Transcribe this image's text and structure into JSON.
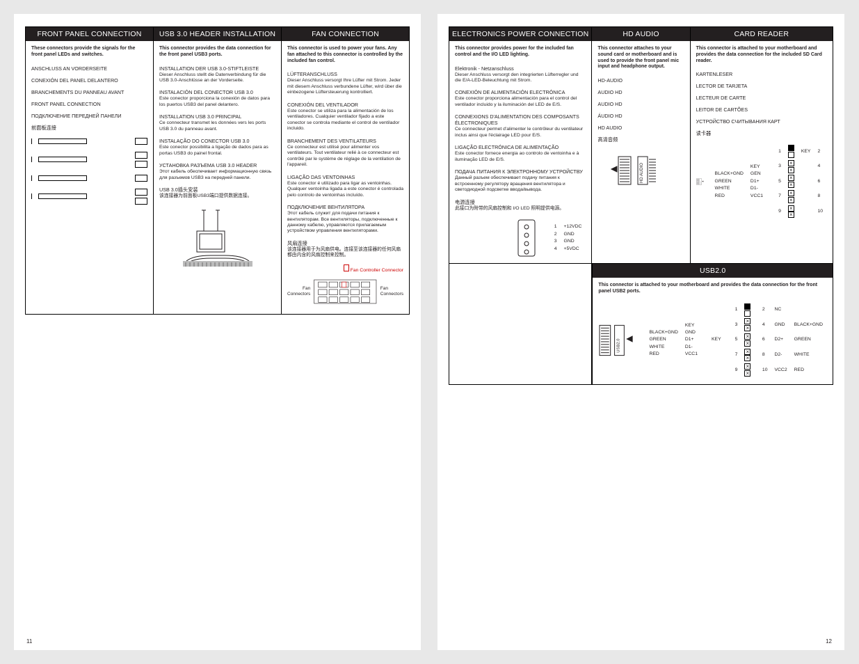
{
  "page_left_no": "11",
  "page_right_no": "12",
  "colors": {
    "ink": "#231f20",
    "bg": "#ffffff",
    "accent_red": "#cc0000"
  },
  "left": {
    "front_panel": {
      "title": "FRONT PANEL CONNECTION",
      "lead": "These connectors provide the signals for the front panel LEDs and switches.",
      "items": [
        {
          "h": "ANSCHLUSS AN VORDERSEITE"
        },
        {
          "h": "CONEXIÓN DEL PANEL DELANTERO"
        },
        {
          "h": "BRANCHEMENTS DU PANNEAU AVANT"
        },
        {
          "h": "FRONT PANEL CONNECTION"
        },
        {
          "h": "ПОДКЛЮЧЕНИЕ ПЕРЕДНЕЙ ПАНЕЛИ"
        },
        {
          "h": "前面板连接"
        }
      ]
    },
    "usb3": {
      "title": "USB 3.0 HEADER INSTALLATION",
      "lead": "This connector provides the data connection for the front panel USB3 ports.",
      "items": [
        {
          "h": "INSTALLATION DER USB 3.0-STIFTLEISTE",
          "p": "Dieser Anschluss stellt die Datenverbindung für die USB 3.0-Anschlüsse an der Vorderseite."
        },
        {
          "h": "INSTALACIÓN DEL CONECTOR USB 3.0",
          "p": "Este conector proporciona la conexión de datos para los puertos USB3 del panel delantero."
        },
        {
          "h": "INSTALLATION USB 3.0 PRINCIPAL",
          "p": "Ce connecteur transmet les données vers les ports USB 3.0 du panneau avant."
        },
        {
          "h": "INSTALAÇÃO DO CONECTOR USB 3.0",
          "p": "Este conector possibilita a ligação de dados para as portas USB3 do painel frontal."
        },
        {
          "h": "УСТАНОВКА РАЗЪЕМА USB 3.0 HEADER",
          "p": "Этот кабель обеспечивает информационную связь для разъемов USB3 на передней панели."
        },
        {
          "h": "USB 3.0插头安装",
          "p": "该连接器为前面板USB3端口提供数据连接。"
        }
      ]
    },
    "fan": {
      "title": "FAN CONNECTION",
      "lead": "This connector is used to power your fans. Any fan attached to this connector is controlled by the included fan control.",
      "items": [
        {
          "h": "LÜFTERANSCHLUSS",
          "p": "Dieser Anschluss versorgt Ihre Lüfter mit Strom. Jeder mit diesem Anschluss verbundene Lüfter, wird über die einbezogene Lüftersteuerung kontrolliert."
        },
        {
          "h": "CONEXIÓN DEL VENTILADOR",
          "p": "Este conector se utiliza para la alimentación de los ventiladores. Cualquier ventilador fijado a este conector se controla mediante el control de ventilador incluido."
        },
        {
          "h": "BRANCHEMENT DES VENTILATEURS",
          "p": "Ce connecteur est utilisé pour alimenter vos ventilateurs. Tout ventilateur relié à ce connecteur est contrôlé par le système de réglage de la ventilation de l'appareil."
        },
        {
          "h": "LIGAÇÃO DAS VENTOINHAS",
          "p": "Este conector é utilizado para ligar as ventoinhas. Qualquer ventoinha ligada a este conector é controlada pelo controlo de ventoinhas incluído."
        },
        {
          "h": "ПОДКЛЮЧЕНИЕ ВЕНТИЛЯТОРА",
          "p": "Этот кабель служит для подачи питания к вентиляторам. Все вентиляторы, подключенные к данному кабелю, управляются прилагаемым устройством управления вентиляторами."
        },
        {
          "h": "风扇连接",
          "p": "该连接器用于为风扇供电。连接至该连接器的任何风扇都由内含的风扇控制来控制。"
        }
      ],
      "fig": {
        "controller": "Fan Controller Connector",
        "left": "Fan\nConnectors",
        "right": "Fan\nConnectors"
      }
    }
  },
  "right": {
    "epc": {
      "title": "ELECTRONICS POWER CONNECTION",
      "lead": "This connector provides power for the included fan control and the I/O LED lighting.",
      "items": [
        {
          "h": "Elektronik - Netzanschluss",
          "p": "Dieser Anschluss versorgt den integrierten Lüfterregler und die E/A-LED-Beleuchtung mit Strom."
        },
        {
          "h": "CONEXIÓN DE ALIMENTACIÓN ELECTRÓNICA",
          "p": "Este conector proporciona alimentación para el control del ventilador incluido y la iluminación del LED de E/S."
        },
        {
          "h": "CONNEXIONS D'ALIMENTATION DES COMPOSANTS ÉLECTRONIQUES",
          "p": "Ce connecteur permet d'alimenter le contrôleur du ventilateur inclus ainsi que l'éclairage LED pour E/S."
        },
        {
          "h": "LIGAÇÃO ELECTRÓNICA DE ALIMENTAÇÃO",
          "p": "Este conector fornece energia ao controlo de ventoinha e à iluminação LED de E/S."
        },
        {
          "h": "ПОДАЧА ПИТАНИЯ К ЭЛЕКТРОННОМУ УСТРОЙСТВУ",
          "p": "Данный разъем обеспечивает подачу питания к встроенному регулятору вращения вентилятора и светодиодной подсветке ввода/вывода."
        },
        {
          "h": "电源连接",
          "p": "此接口为附带的风扇控制和 I/O LED 照明提供电源。"
        }
      ],
      "pins": [
        {
          "n": "1",
          "l": "+12VDC"
        },
        {
          "n": "2",
          "l": "GND"
        },
        {
          "n": "3",
          "l": "GND"
        },
        {
          "n": "4",
          "l": "+5VDC"
        }
      ]
    },
    "hd": {
      "title": "HD AUDIO",
      "lead": "This connector attaches to your sound card or motherboard and is used to provide the front panel mic input and headphone output.",
      "items": [
        {
          "h": "HD-AUDIO"
        },
        {
          "h": "AUDIO HD"
        },
        {
          "h": "AUDIO HD"
        },
        {
          "h": "ÁUDIO HD"
        },
        {
          "h": "HD AUDIO"
        },
        {
          "h": "高清音频"
        }
      ],
      "fig_label": "HD AUDIO"
    },
    "card": {
      "title": "CARD READER",
      "lead": "This connector is attached to your motherboard and provides the data connection for the included SD Card reader.",
      "items": [
        {
          "h": "KARTENLESER"
        },
        {
          "h": "LECTOR DE TARJETA"
        },
        {
          "h": "LECTEUR DE CARTE"
        },
        {
          "h": "LEITOR DE CARTÕES"
        },
        {
          "h": "УСТРОЙСТВО СЧИТЫВАНИЯ КАРТ"
        },
        {
          "h": "读卡器"
        }
      ],
      "fig_label": "USB2.0",
      "left_col": [
        {
          "c": "",
          "s": "KEY"
        },
        {
          "c": "BLACK+GND",
          "s": "GEN"
        },
        {
          "c": "GREEN",
          "s": "D1+"
        },
        {
          "c": "WHITE",
          "s": "D1-"
        },
        {
          "c": "RED",
          "s": "VCC1"
        }
      ],
      "right_col": [
        {
          "n": "1",
          "s": "KEY",
          "m": "2"
        },
        {
          "n": "3",
          "s": "",
          "m": "4"
        },
        {
          "n": "5",
          "s": "",
          "m": "6"
        },
        {
          "n": "7",
          "s": "",
          "m": "8"
        },
        {
          "n": "9",
          "s": "",
          "m": "10"
        }
      ]
    },
    "usb2": {
      "title": "USB2.0",
      "lead": "This connector is attached to your motherboard and provides the data connection for the front panel USB2 ports.",
      "fig_label": "USB2.0",
      "left_col": [
        {
          "c": "",
          "s": "KEY"
        },
        {
          "c": "BLACK+GND",
          "s": "GND"
        },
        {
          "c": "GREEN",
          "s": "D1+"
        },
        {
          "c": "WHITE",
          "s": "D1-"
        },
        {
          "c": "RED",
          "s": "VCC1"
        }
      ],
      "right_rows": [
        {
          "l": "1",
          "r": "2",
          "rs": "NC"
        },
        {
          "l": "3",
          "r": "4",
          "rs": "GND",
          "rc": "BLACK+GND"
        },
        {
          "l": "5",
          "r": "6",
          "rs": "D2+",
          "rc": "GREEN"
        },
        {
          "l": "7",
          "r": "8",
          "rs": "D2-",
          "rc": "WHITE"
        },
        {
          "l": "9",
          "r": "10",
          "rs": "VCC2",
          "rc": "RED"
        }
      ],
      "key_label": "KEY"
    }
  }
}
